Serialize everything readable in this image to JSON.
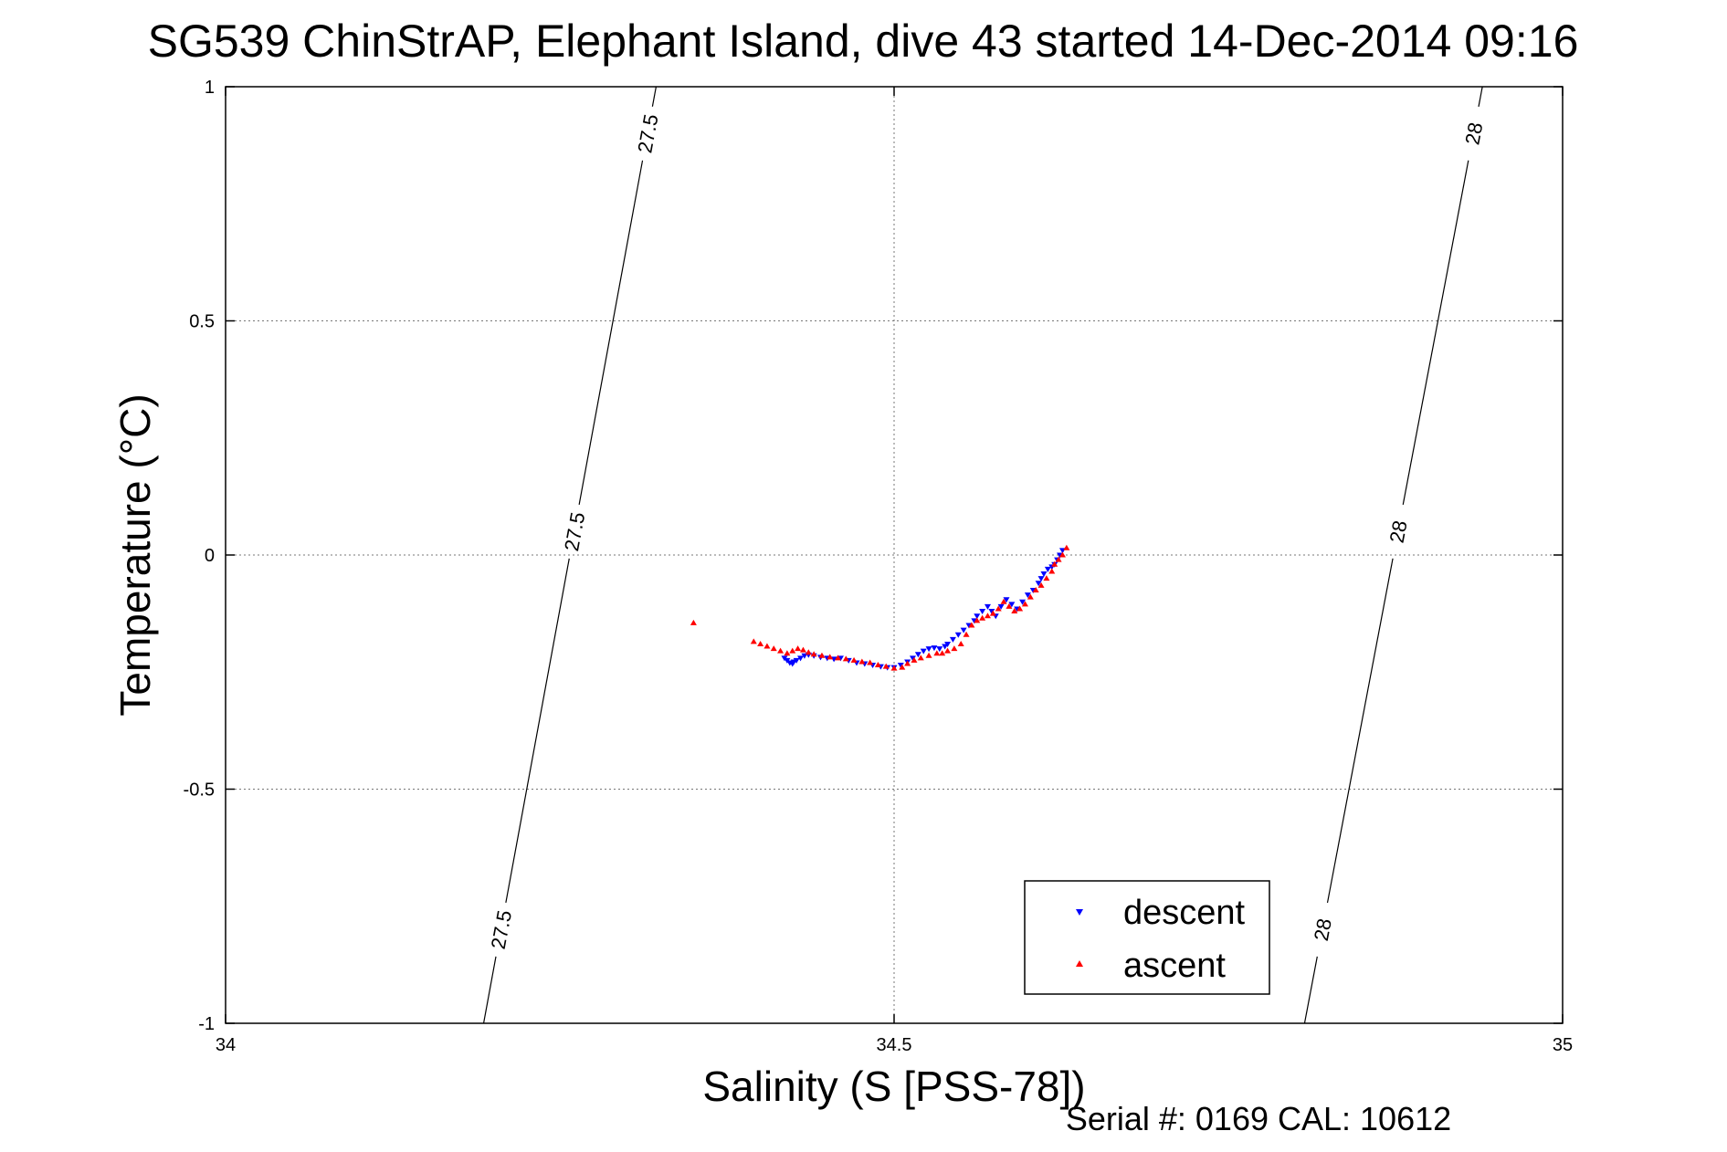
{
  "chart_data": {
    "type": "scatter",
    "title": "SG539 ChinStrAP, Elephant Island, dive 43 started 14-Dec-2014 09:16",
    "xlabel": "Salinity (S [PSS-78])",
    "ylabel": "Temperature (°C)",
    "xlim": [
      34,
      35
    ],
    "ylim": [
      -1,
      1
    ],
    "xticks": [
      34,
      34.5,
      35
    ],
    "yticks": [
      -1,
      -0.5,
      0,
      0.5,
      1
    ],
    "xtick_labels": [
      "34",
      "34.5",
      "35"
    ],
    "ytick_labels": [
      "-1",
      "-0.5",
      "0",
      "0.5",
      "1"
    ],
    "grid": true,
    "legend_position": "bottom-right",
    "footer": "Serial #: 0169 CAL: 10612",
    "contours": [
      {
        "level_label": "27.5",
        "points": [
          [
            34.193,
            -1
          ],
          [
            34.322,
            1
          ]
        ],
        "labels_at": [
          [
            34.206,
            -0.8
          ],
          [
            34.252,
            0.05
          ],
          [
            34.31,
            0.9
          ]
        ]
      },
      {
        "level_label": "28",
        "points": [
          [
            34.807,
            -1
          ],
          [
            34.94,
            1
          ]
        ],
        "labels_at": [
          [
            34.82,
            -0.8
          ],
          [
            34.87,
            0.05
          ],
          [
            34.93,
            0.9
          ]
        ]
      }
    ],
    "series": [
      {
        "name": "descent",
        "color": "#0000ff",
        "marker": "triangle-down",
        "x": [
          34.418,
          34.42,
          34.422,
          34.424,
          34.425,
          34.427,
          34.43,
          34.433,
          34.436,
          34.44,
          34.445,
          34.45,
          34.455,
          34.46,
          34.466,
          34.472,
          34.478,
          34.484,
          34.49,
          34.495,
          34.5,
          34.505,
          34.51,
          34.514,
          34.518,
          34.522,
          34.526,
          34.53,
          34.534,
          34.538,
          34.54,
          34.544,
          34.548,
          34.552,
          34.556,
          34.56,
          34.562,
          34.566,
          34.57,
          34.573,
          34.576,
          34.58,
          34.584,
          34.588,
          34.592,
          34.596,
          34.6,
          34.604,
          34.608,
          34.61,
          34.612,
          34.615,
          34.618,
          34.62,
          34.622,
          34.624,
          34.626
        ],
        "y": [
          -0.22,
          -0.225,
          -0.23,
          -0.232,
          -0.228,
          -0.225,
          -0.22,
          -0.215,
          -0.213,
          -0.215,
          -0.218,
          -0.22,
          -0.222,
          -0.22,
          -0.225,
          -0.23,
          -0.232,
          -0.235,
          -0.238,
          -0.24,
          -0.24,
          -0.235,
          -0.228,
          -0.22,
          -0.212,
          -0.205,
          -0.2,
          -0.198,
          -0.2,
          -0.195,
          -0.19,
          -0.18,
          -0.17,
          -0.16,
          -0.15,
          -0.14,
          -0.13,
          -0.12,
          -0.11,
          -0.12,
          -0.13,
          -0.11,
          -0.095,
          -0.105,
          -0.115,
          -0.1,
          -0.085,
          -0.075,
          -0.06,
          -0.05,
          -0.04,
          -0.03,
          -0.025,
          -0.02,
          -0.01,
          0.0,
          0.01
        ]
      },
      {
        "name": "ascent",
        "color": "#ff0000",
        "marker": "triangle-up",
        "x": [
          34.35,
          34.395,
          34.4,
          34.405,
          34.41,
          34.415,
          34.42,
          34.424,
          34.428,
          34.432,
          34.436,
          34.44,
          34.446,
          34.452,
          34.458,
          34.464,
          34.47,
          34.476,
          34.482,
          34.488,
          34.494,
          34.5,
          34.506,
          34.51,
          34.515,
          34.52,
          34.526,
          34.532,
          34.536,
          34.54,
          34.545,
          34.55,
          34.554,
          34.558,
          34.562,
          34.566,
          34.57,
          34.574,
          34.578,
          34.582,
          34.586,
          34.59,
          34.594,
          34.598,
          34.602,
          34.606,
          34.61,
          34.614,
          34.618,
          34.62,
          34.623,
          34.626,
          34.629
        ],
        "y": [
          -0.145,
          -0.185,
          -0.19,
          -0.195,
          -0.2,
          -0.205,
          -0.21,
          -0.205,
          -0.2,
          -0.203,
          -0.208,
          -0.212,
          -0.215,
          -0.218,
          -0.22,
          -0.222,
          -0.225,
          -0.228,
          -0.23,
          -0.235,
          -0.238,
          -0.242,
          -0.24,
          -0.232,
          -0.225,
          -0.22,
          -0.215,
          -0.21,
          -0.21,
          -0.205,
          -0.2,
          -0.19,
          -0.17,
          -0.15,
          -0.14,
          -0.135,
          -0.13,
          -0.125,
          -0.115,
          -0.1,
          -0.11,
          -0.12,
          -0.115,
          -0.105,
          -0.09,
          -0.075,
          -0.065,
          -0.05,
          -0.035,
          -0.02,
          -0.01,
          0.0,
          0.015
        ]
      }
    ]
  }
}
